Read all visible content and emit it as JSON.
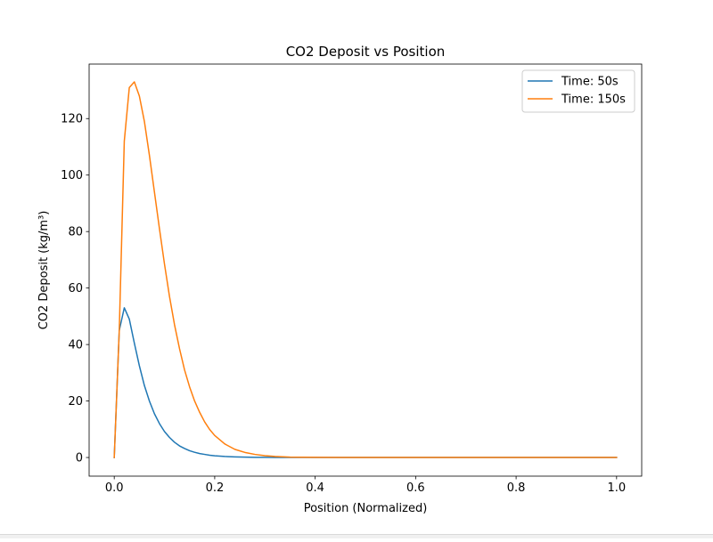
{
  "chart_data": {
    "type": "line",
    "title": "CO2 Deposit vs Position",
    "xlabel": "Position (Normalized)",
    "ylabel": "CO2 Deposit (kg/m³)",
    "xlim": [
      -0.05,
      1.05
    ],
    "ylim": [
      -6.6,
      139.3
    ],
    "xticks": [
      0.0,
      0.2,
      0.4,
      0.6,
      0.8,
      1.0
    ],
    "xtick_labels": [
      "0.0",
      "0.2",
      "0.4",
      "0.6",
      "0.8",
      "1.0"
    ],
    "yticks": [
      0,
      20,
      40,
      60,
      80,
      100,
      120
    ],
    "ytick_labels": [
      "0",
      "20",
      "40",
      "60",
      "80",
      "100",
      "120"
    ],
    "grid": false,
    "legend_position": "top-right",
    "series": [
      {
        "name": "Time: 50s",
        "color": "#1f77b4",
        "x": [
          0.0,
          0.01,
          0.02,
          0.03,
          0.04,
          0.05,
          0.06,
          0.07,
          0.08,
          0.09,
          0.1,
          0.11,
          0.12,
          0.13,
          0.14,
          0.15,
          0.16,
          0.17,
          0.18,
          0.19,
          0.2,
          0.22,
          0.24,
          0.26,
          0.28,
          0.3,
          0.32,
          0.35,
          0.4,
          0.5,
          0.6,
          0.7,
          0.8,
          0.9,
          1.0
        ],
        "y": [
          0,
          45,
          53,
          49,
          40.5,
          32.5,
          25.5,
          20,
          15.5,
          12,
          9.2,
          7.1,
          5.4,
          4.1,
          3.2,
          2.4,
          1.85,
          1.4,
          1.1,
          0.8,
          0.6,
          0.36,
          0.21,
          0.12,
          0.07,
          0.04,
          0.02,
          0.01,
          0,
          0,
          0,
          0,
          0,
          0,
          0
        ]
      },
      {
        "name": "Time: 150s",
        "color": "#ff7f0e",
        "x": [
          0.0,
          0.01,
          0.02,
          0.03,
          0.04,
          0.05,
          0.06,
          0.07,
          0.08,
          0.09,
          0.1,
          0.11,
          0.12,
          0.13,
          0.14,
          0.15,
          0.16,
          0.17,
          0.18,
          0.19,
          0.2,
          0.22,
          0.24,
          0.26,
          0.28,
          0.3,
          0.32,
          0.35,
          0.4,
          0.45,
          0.5,
          0.6,
          0.7,
          0.8,
          0.9,
          1.0
        ],
        "y": [
          0,
          45,
          112,
          131,
          133,
          128,
          119,
          107,
          94,
          81,
          68.5,
          57,
          47,
          38.5,
          31,
          25,
          20,
          16,
          12.6,
          9.9,
          7.8,
          4.8,
          2.9,
          1.8,
          1.1,
          0.65,
          0.38,
          0.15,
          0.04,
          0.01,
          0,
          0,
          0,
          0,
          0,
          0
        ]
      }
    ]
  }
}
